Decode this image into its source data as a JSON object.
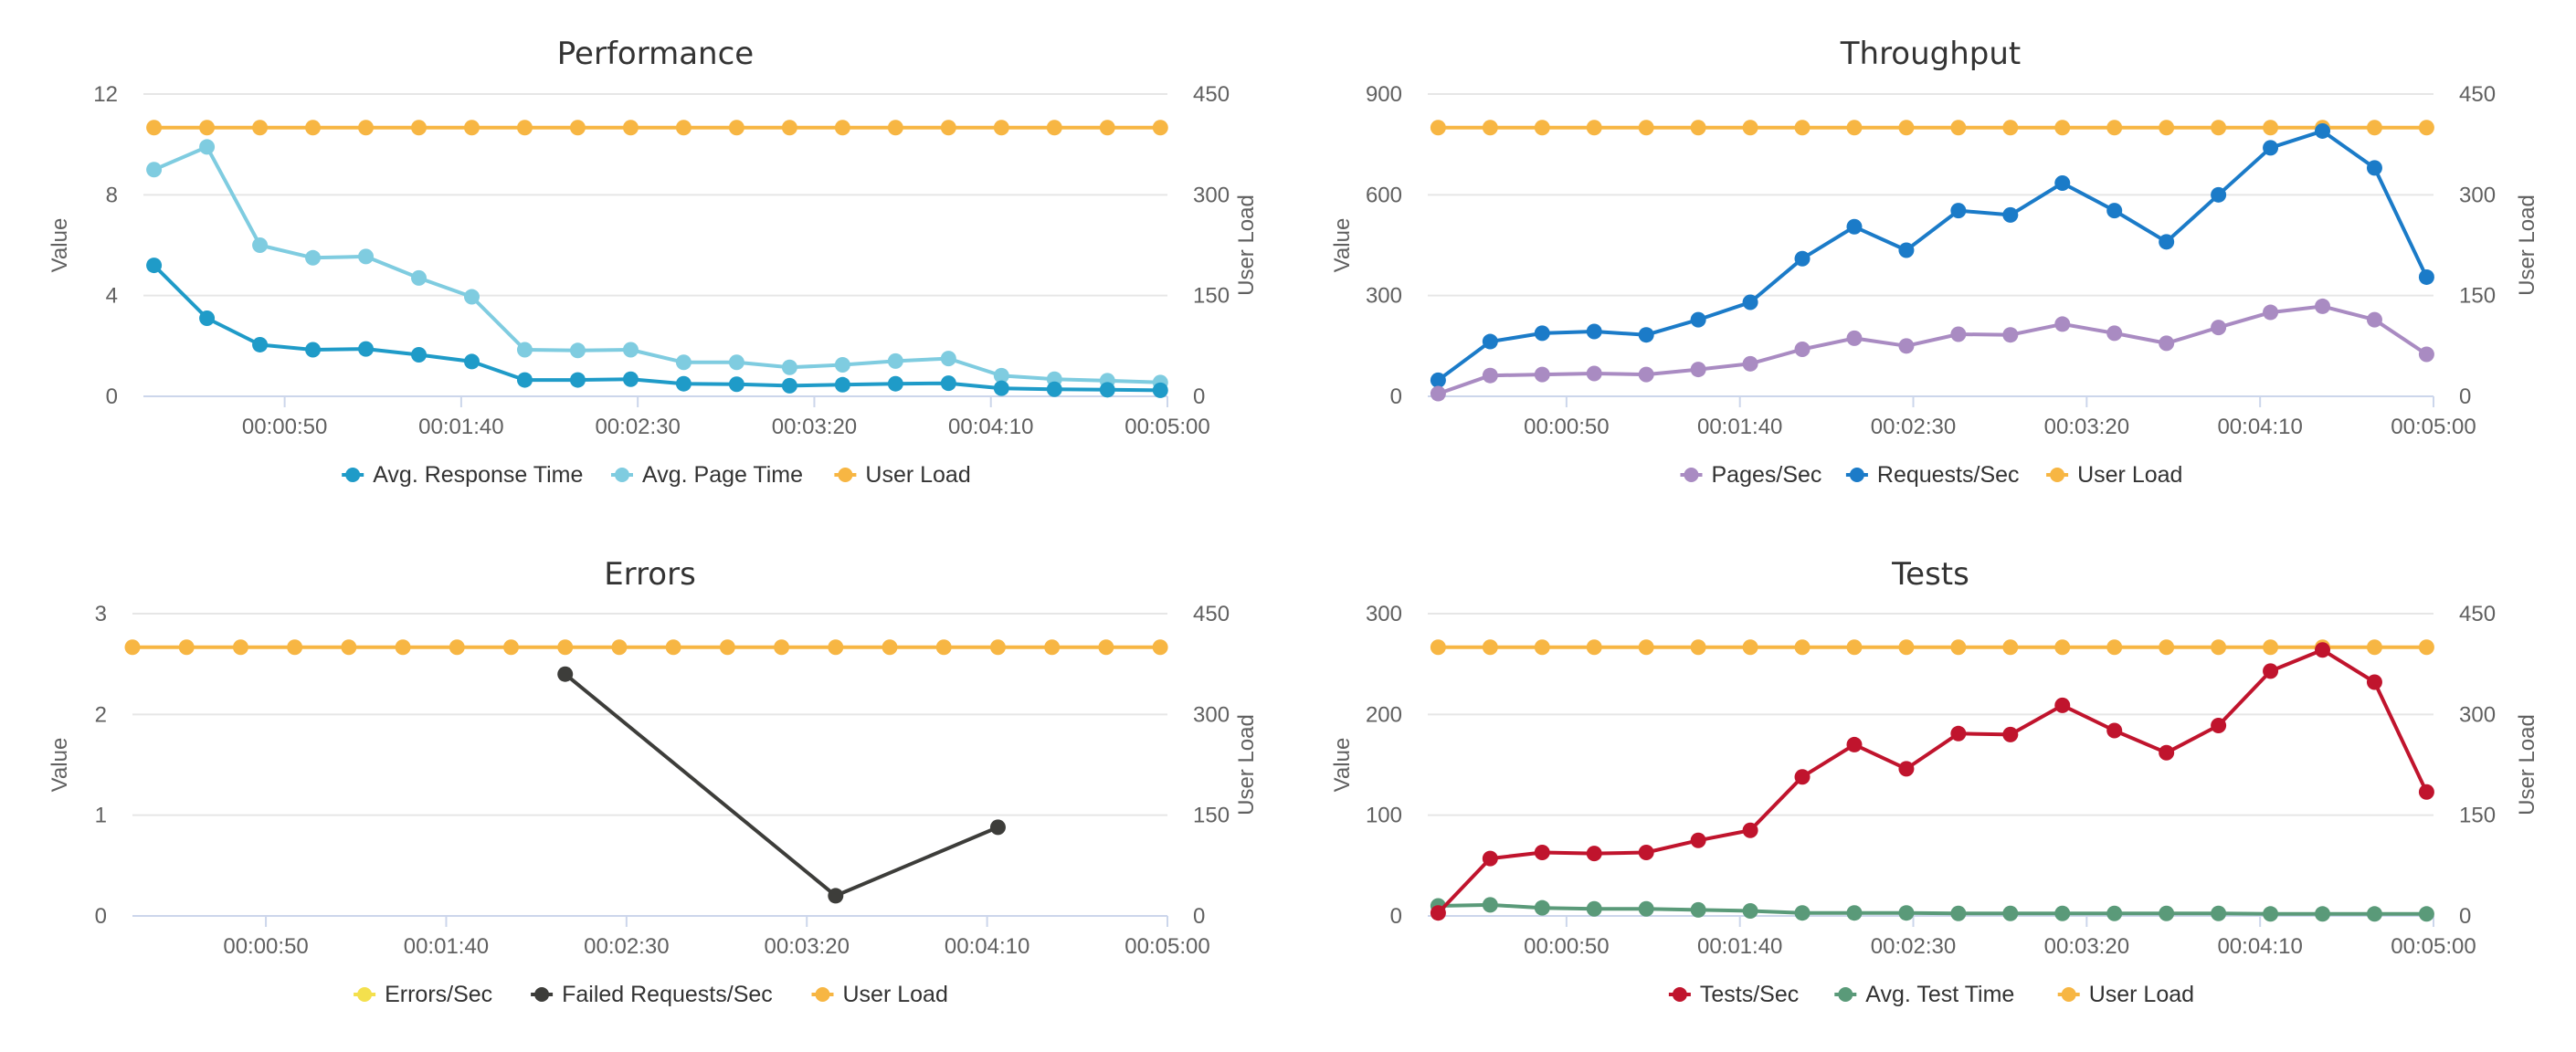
{
  "chart_data": [
    {
      "type": "line",
      "title": "Performance",
      "ylabel": "Value",
      "y2label": "User Load",
      "ylim": [
        0,
        12
      ],
      "yticks": [
        0,
        4,
        8,
        12
      ],
      "y2lim": [
        0,
        450
      ],
      "y2ticks": [
        0,
        150,
        300,
        450
      ],
      "xlim": [
        10,
        300
      ],
      "xticks": [
        50,
        100,
        150,
        200,
        250,
        300
      ],
      "xtick_labels": [
        "00:00:50",
        "00:01:40",
        "00:02:30",
        "00:03:20",
        "00:04:10",
        "00:05:00"
      ],
      "legend": "bottom",
      "series": [
        {
          "name": "Avg. Response Time",
          "axis": "left",
          "color": "#1f9bc8",
          "x": [
            13,
            28,
            43,
            58,
            73,
            88,
            103,
            118,
            133,
            148,
            163,
            178,
            193,
            208,
            223,
            238,
            253,
            268,
            283,
            298
          ],
          "values": [
            5.2,
            3.1,
            2.05,
            1.85,
            1.88,
            1.65,
            1.38,
            0.65,
            0.65,
            0.68,
            0.5,
            0.48,
            0.42,
            0.46,
            0.5,
            0.52,
            0.32,
            0.28,
            0.26,
            0.24
          ]
        },
        {
          "name": "Avg. Page Time",
          "axis": "left",
          "color": "#7fcce0",
          "x": [
            13,
            28,
            43,
            58,
            73,
            88,
            103,
            118,
            133,
            148,
            163,
            178,
            193,
            208,
            223,
            238,
            253,
            268,
            283,
            298
          ],
          "values": [
            9.0,
            9.9,
            6.0,
            5.5,
            5.55,
            4.7,
            3.95,
            1.85,
            1.82,
            1.85,
            1.35,
            1.35,
            1.15,
            1.25,
            1.4,
            1.5,
            0.82,
            0.68,
            0.62,
            0.55
          ]
        },
        {
          "name": "User Load",
          "axis": "right",
          "color": "#f7b643",
          "x": [
            13,
            28,
            43,
            58,
            73,
            88,
            103,
            118,
            133,
            148,
            163,
            178,
            193,
            208,
            223,
            238,
            253,
            268,
            283,
            298
          ],
          "values": [
            400,
            400,
            400,
            400,
            400,
            400,
            400,
            400,
            400,
            400,
            400,
            400,
            400,
            400,
            400,
            400,
            400,
            400,
            400,
            400
          ]
        }
      ]
    },
    {
      "type": "line",
      "title": "Throughput",
      "ylabel": "Value",
      "y2label": "User Load",
      "ylim": [
        0,
        900
      ],
      "yticks": [
        0,
        300,
        600,
        900
      ],
      "y2lim": [
        0,
        450
      ],
      "y2ticks": [
        0,
        150,
        300,
        450
      ],
      "xlim": [
        10,
        300
      ],
      "xticks": [
        50,
        100,
        150,
        200,
        250,
        300
      ],
      "xtick_labels": [
        "00:00:50",
        "00:01:40",
        "00:02:30",
        "00:03:20",
        "00:04:10",
        "00:05:00"
      ],
      "legend": "bottom",
      "series": [
        {
          "name": "Pages/Sec",
          "axis": "left",
          "color": "#a98bc2",
          "x": [
            13,
            28,
            43,
            58,
            73,
            88,
            103,
            118,
            133,
            148,
            163,
            178,
            193,
            208,
            223,
            238,
            253,
            268,
            283,
            298
          ],
          "values": [
            8,
            62,
            65,
            68,
            65,
            80,
            97,
            140,
            173,
            150,
            185,
            183,
            215,
            188,
            158,
            205,
            250,
            268,
            228,
            125
          ]
        },
        {
          "name": "Requests/Sec",
          "axis": "left",
          "color": "#1b7bc8",
          "x": [
            13,
            28,
            43,
            58,
            73,
            88,
            103,
            118,
            133,
            148,
            163,
            178,
            193,
            208,
            223,
            238,
            253,
            268,
            283,
            298
          ],
          "values": [
            48,
            163,
            188,
            193,
            183,
            228,
            280,
            410,
            505,
            435,
            553,
            540,
            635,
            553,
            460,
            600,
            740,
            790,
            680,
            355
          ]
        },
        {
          "name": "User Load",
          "axis": "right",
          "color": "#f7b643",
          "x": [
            13,
            28,
            43,
            58,
            73,
            88,
            103,
            118,
            133,
            148,
            163,
            178,
            193,
            208,
            223,
            238,
            253,
            268,
            283,
            298
          ],
          "values": [
            400,
            400,
            400,
            400,
            400,
            400,
            400,
            400,
            400,
            400,
            400,
            400,
            400,
            400,
            400,
            400,
            400,
            400,
            400,
            400
          ]
        }
      ]
    },
    {
      "type": "line",
      "title": "Errors",
      "ylabel": "Value",
      "y2label": "User Load",
      "ylim": [
        0,
        3
      ],
      "yticks": [
        0,
        1,
        2,
        3
      ],
      "y2lim": [
        0,
        450
      ],
      "y2ticks": [
        0,
        150,
        300,
        450
      ],
      "xlim": [
        13,
        300
      ],
      "xticks": [
        50,
        100,
        150,
        200,
        250,
        300
      ],
      "xtick_labels": [
        "00:00:50",
        "00:01:40",
        "00:02:30",
        "00:03:20",
        "00:04:10",
        "00:05:00"
      ],
      "legend": "bottom",
      "series": [
        {
          "name": "Errors/Sec",
          "axis": "left",
          "color": "#f4e04d",
          "x": [],
          "values": []
        },
        {
          "name": "Failed Requests/Sec",
          "axis": "left",
          "color": "#3d3d3a",
          "x": [
            133,
            208,
            253
          ],
          "values": [
            2.4,
            0.2,
            0.88
          ]
        },
        {
          "name": "User Load",
          "axis": "right",
          "color": "#f7b643",
          "x": [
            13,
            28,
            43,
            58,
            73,
            88,
            103,
            118,
            133,
            148,
            163,
            178,
            193,
            208,
            223,
            238,
            253,
            268,
            283,
            298
          ],
          "values": [
            400,
            400,
            400,
            400,
            400,
            400,
            400,
            400,
            400,
            400,
            400,
            400,
            400,
            400,
            400,
            400,
            400,
            400,
            400,
            400
          ]
        }
      ]
    },
    {
      "type": "line",
      "title": "Tests",
      "ylabel": "Value",
      "y2label": "User Load",
      "ylim": [
        0,
        300
      ],
      "yticks": [
        0,
        100,
        200,
        300
      ],
      "y2lim": [
        0,
        450
      ],
      "y2ticks": [
        0,
        150,
        300,
        450
      ],
      "xlim": [
        10,
        300
      ],
      "xticks": [
        50,
        100,
        150,
        200,
        250,
        300
      ],
      "xtick_labels": [
        "00:00:50",
        "00:01:40",
        "00:02:30",
        "00:03:20",
        "00:04:10",
        "00:05:00"
      ],
      "legend": "bottom",
      "series": [
        {
          "name": "Tests/Sec",
          "axis": "left",
          "color": "#c0142d",
          "x": [
            13,
            28,
            43,
            58,
            73,
            88,
            103,
            118,
            133,
            148,
            163,
            178,
            193,
            208,
            223,
            238,
            253,
            268,
            283,
            298
          ],
          "values": [
            3,
            57,
            63,
            62,
            63,
            75,
            85,
            138,
            170,
            146,
            181,
            180,
            209,
            184,
            162,
            189,
            243,
            264,
            232,
            123
          ]
        },
        {
          "name": "Avg. Test Time",
          "axis": "left",
          "color": "#5a9a79",
          "x": [
            13,
            28,
            43,
            58,
            73,
            88,
            103,
            118,
            133,
            148,
            163,
            178,
            193,
            208,
            223,
            238,
            253,
            268,
            283,
            298
          ],
          "values": [
            10,
            11,
            8,
            7,
            7,
            6,
            5,
            3,
            3,
            3,
            2.5,
            2.5,
            2.5,
            2.5,
            2.5,
            2.5,
            2,
            2,
            2,
            2
          ]
        },
        {
          "name": "User Load",
          "axis": "right",
          "color": "#f7b643",
          "x": [
            13,
            28,
            43,
            58,
            73,
            88,
            103,
            118,
            133,
            148,
            163,
            178,
            193,
            208,
            223,
            238,
            253,
            268,
            283,
            298
          ],
          "values": [
            400,
            400,
            400,
            400,
            400,
            400,
            400,
            400,
            400,
            400,
            400,
            400,
            400,
            400,
            400,
            400,
            400,
            400,
            400,
            400
          ]
        }
      ]
    }
  ]
}
